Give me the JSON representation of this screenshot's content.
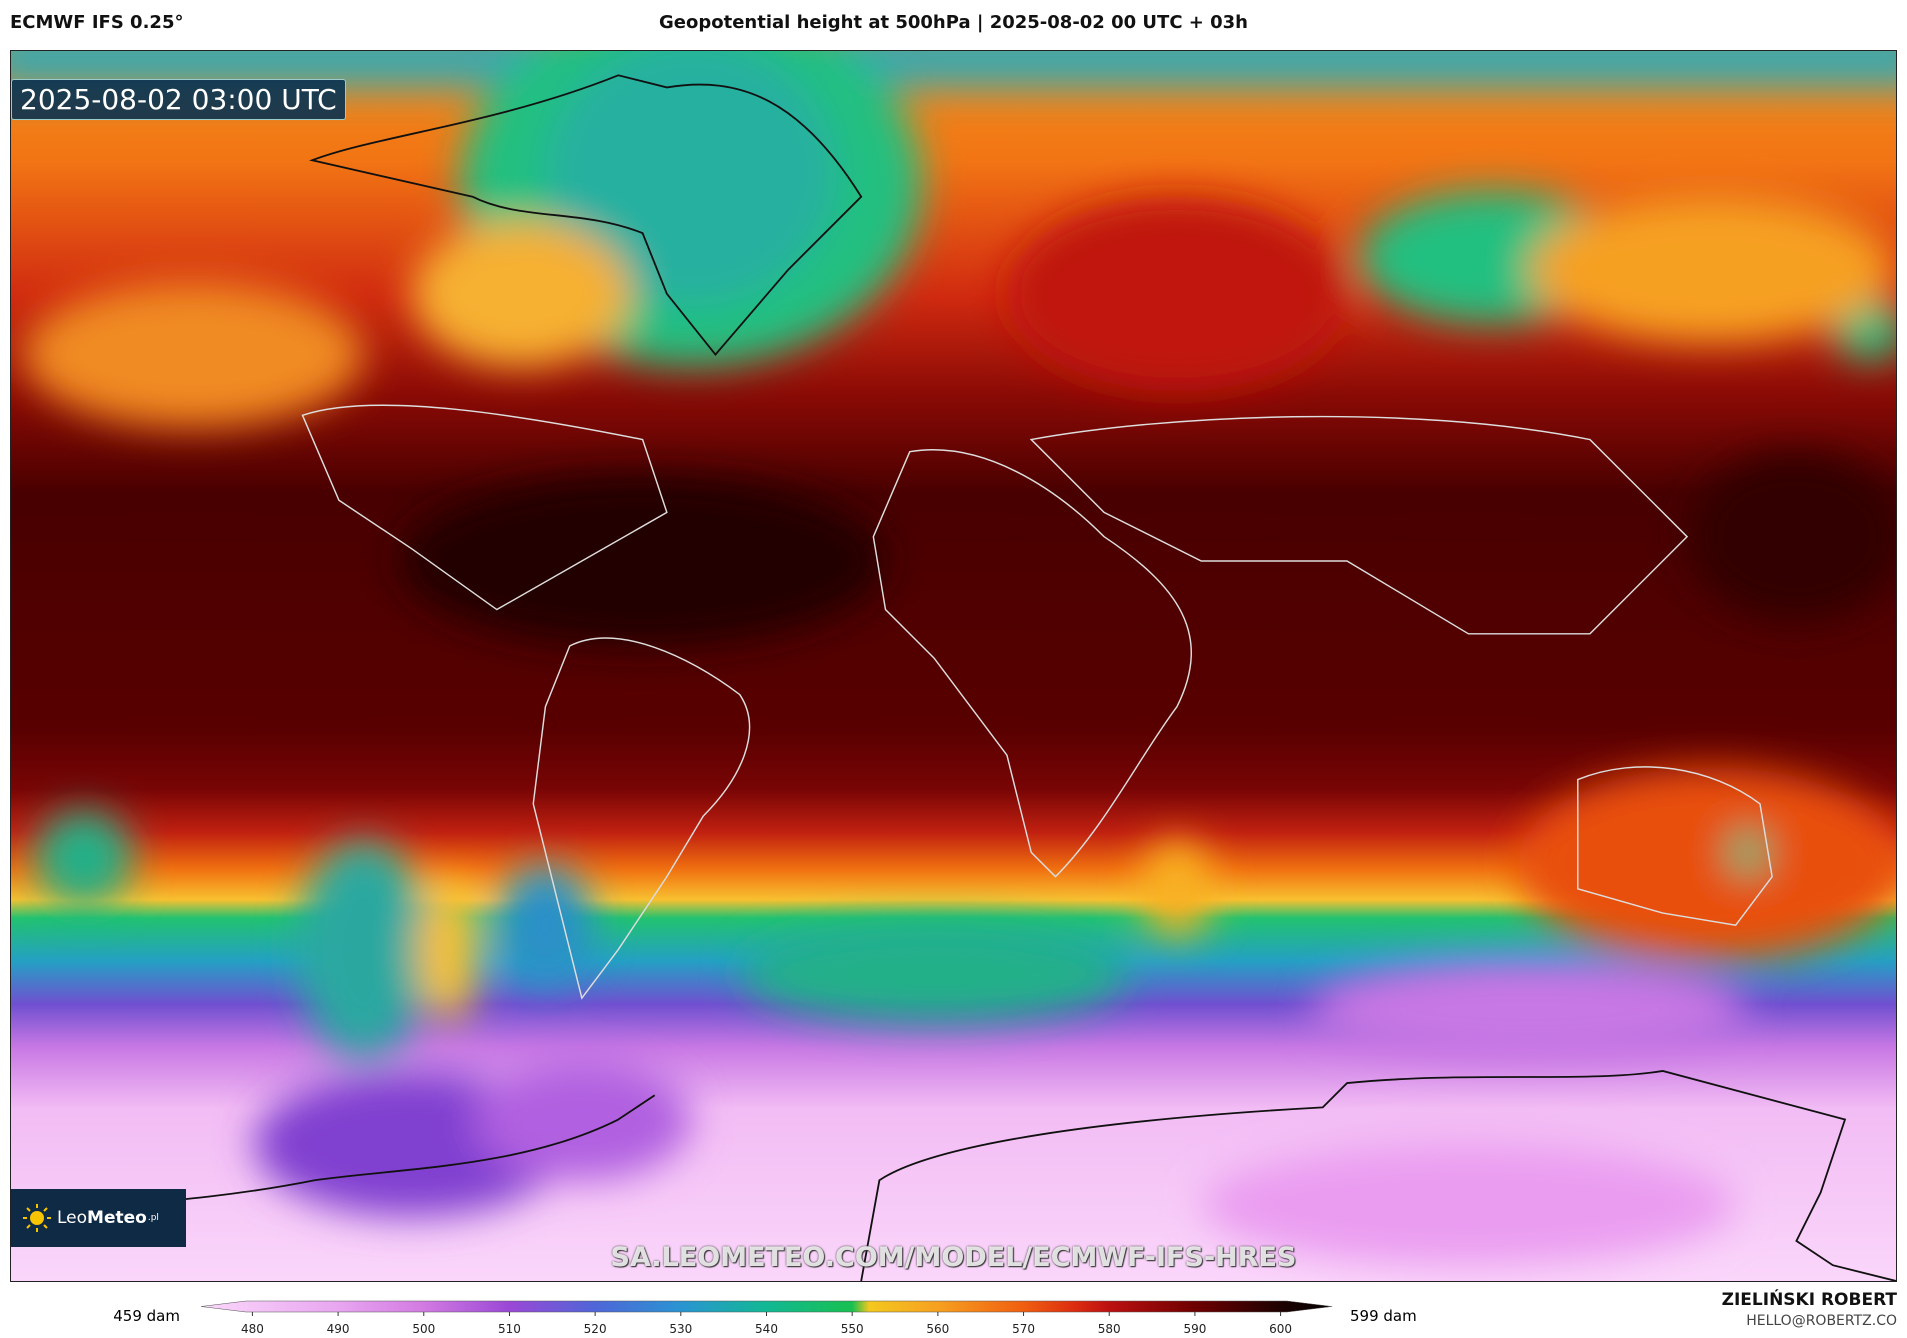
{
  "header": {
    "model": "ECMWF IFS 0.25°",
    "title": "Geopotential height at 500hPa | 2025-08-02 00 UTC + 03h"
  },
  "map": {
    "timestamp": "2025-08-02 03:00 UTC",
    "watermark": "SA.LEOMETEO.COM/MODEL/ECMWF-IFS-HRES",
    "logo": {
      "light": "Leo",
      "bold": "Meteo",
      "suffix": ".pl"
    }
  },
  "colorbar": {
    "min_label": "459 dam",
    "max_label": "599 dam",
    "range": [
      474,
      606
    ],
    "ticks": [
      480,
      490,
      500,
      510,
      520,
      530,
      540,
      550,
      560,
      570,
      580,
      590,
      600
    ],
    "stops": [
      {
        "value": 474,
        "color": "#fbd8fb"
      },
      {
        "value": 490,
        "color": "#e8a6f0"
      },
      {
        "value": 500,
        "color": "#d27ae2"
      },
      {
        "value": 510,
        "color": "#9a48d6"
      },
      {
        "value": 520,
        "color": "#4f66d8"
      },
      {
        "value": 530,
        "color": "#2a94d2"
      },
      {
        "value": 540,
        "color": "#12b894"
      },
      {
        "value": 550,
        "color": "#18c050"
      },
      {
        "value": 552,
        "color": "#f4c81e"
      },
      {
        "value": 560,
        "color": "#f6a020"
      },
      {
        "value": 570,
        "color": "#f05e10"
      },
      {
        "value": 576,
        "color": "#dc2c10"
      },
      {
        "value": 580,
        "color": "#bc1010"
      },
      {
        "value": 590,
        "color": "#6e0000"
      },
      {
        "value": 600,
        "color": "#1e0000"
      },
      {
        "value": 606,
        "color": "#000000"
      }
    ]
  },
  "footer": {
    "author": "ZIELIŃSKI ROBERT",
    "email": "HELLO@ROBERTZ.CO"
  }
}
